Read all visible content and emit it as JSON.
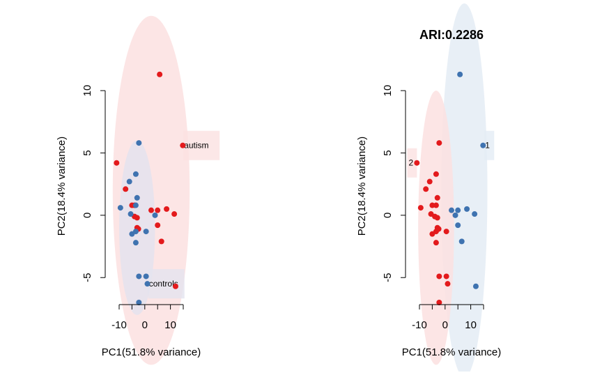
{
  "chart_data": [
    {
      "type": "scatter",
      "title": "",
      "xlabel": "PC1(51.8% variance)",
      "ylabel": "PC2(18.4% variance)",
      "xlim": [
        -10,
        15
      ],
      "ylim": [
        -7,
        10
      ],
      "xticks": [
        -10,
        0,
        10
      ],
      "yticks": [
        -5,
        0,
        5,
        10
      ],
      "grid": false,
      "colors": {
        "red": "#E31A1C",
        "blue": "#3F73B0"
      },
      "series": [
        {
          "name": "autism",
          "color": "#E31A1C",
          "ellipse": {
            "cx": 2.5,
            "cy": 2.0,
            "rx": 15.0,
            "ry": 14.0,
            "fill": "#FBE1E1"
          },
          "label_at": [
            14.5,
            5.6
          ],
          "points": [
            [
              5.8,
              11.3
            ],
            [
              14.8,
              5.6
            ],
            [
              -11.0,
              4.2
            ],
            [
              -7.5,
              2.1
            ],
            [
              -5.0,
              0.8
            ],
            [
              -4.0,
              0.8
            ],
            [
              -4.0,
              -0.1
            ],
            [
              -3.0,
              -0.2
            ],
            [
              -3.0,
              -1.0
            ],
            [
              -2.5,
              -1.1
            ],
            [
              2.5,
              0.4
            ],
            [
              5.0,
              0.4
            ],
            [
              8.5,
              0.5
            ],
            [
              11.5,
              0.1
            ],
            [
              5.0,
              -0.8
            ],
            [
              6.5,
              -2.1
            ],
            [
              12.0,
              -5.7
            ]
          ]
        },
        {
          "name": "controls",
          "color": "#3F73B0",
          "ellipse": {
            "cx": -3.0,
            "cy": -1.0,
            "rx": 7.0,
            "ry": 7.0,
            "fill": "#E4E3EF"
          },
          "label_at": [
            0.8,
            -5.5
          ],
          "points": [
            [
              -2.3,
              5.8
            ],
            [
              -3.5,
              3.3
            ],
            [
              -6.0,
              2.7
            ],
            [
              -3.0,
              1.4
            ],
            [
              -9.5,
              0.6
            ],
            [
              -3.5,
              0.8
            ],
            [
              -5.5,
              0.1
            ],
            [
              4.0,
              0.0
            ],
            [
              -5.0,
              -1.5
            ],
            [
              -3.5,
              -1.3
            ],
            [
              0.5,
              -1.3
            ],
            [
              -3.5,
              -2.2
            ],
            [
              -2.3,
              -4.9
            ],
            [
              0.5,
              -4.9
            ],
            [
              1.0,
              -5.5
            ],
            [
              -2.3,
              -7.0
            ]
          ]
        }
      ],
      "annotations": [
        "autism",
        "controls"
      ]
    },
    {
      "type": "scatter",
      "title": "ARI:0.2286",
      "xlabel": "PC1(51.8% variance)",
      "ylabel": "PC2(18.4% variance)",
      "xlim": [
        -10,
        15
      ],
      "ylim": [
        -7,
        10
      ],
      "xticks": [
        -10,
        0,
        10
      ],
      "yticks": [
        -5,
        0,
        5,
        10
      ],
      "grid": false,
      "colors": {
        "red": "#E31A1C",
        "blue": "#3F73B0"
      },
      "series": [
        {
          "name": "1",
          "color": "#3F73B0",
          "ellipse": {
            "cx": 7.5,
            "cy": 2.0,
            "rx": 9.0,
            "ry": 15.0,
            "fill": "#E4ECF5"
          },
          "label_at": [
            14.8,
            5.6
          ],
          "points": [
            [
              5.8,
              11.3
            ],
            [
              14.8,
              5.6
            ],
            [
              2.5,
              0.4
            ],
            [
              5.0,
              0.4
            ],
            [
              8.5,
              0.5
            ],
            [
              11.5,
              0.1
            ],
            [
              4.0,
              0.0
            ],
            [
              5.0,
              -0.8
            ],
            [
              6.5,
              -2.1
            ],
            [
              12.0,
              -5.7
            ]
          ]
        },
        {
          "name": "2",
          "color": "#E31A1C",
          "ellipse": {
            "cx": -3.5,
            "cy": -1.0,
            "rx": 7.0,
            "ry": 11.0,
            "fill": "#FBE1E1"
          },
          "label_at": [
            -11.5,
            4.2
          ],
          "points": [
            [
              -2.3,
              5.8
            ],
            [
              -3.5,
              3.3
            ],
            [
              -6.0,
              2.7
            ],
            [
              -11.0,
              4.2
            ],
            [
              -7.5,
              2.1
            ],
            [
              -3.0,
              1.4
            ],
            [
              -9.5,
              0.6
            ],
            [
              -3.5,
              0.8
            ],
            [
              -5.0,
              0.8
            ],
            [
              -5.5,
              0.1
            ],
            [
              -4.0,
              -0.1
            ],
            [
              -3.0,
              -0.2
            ],
            [
              -3.0,
              -1.0
            ],
            [
              -2.5,
              -1.1
            ],
            [
              -5.0,
              -1.5
            ],
            [
              -3.5,
              -1.3
            ],
            [
              0.5,
              -1.3
            ],
            [
              -3.5,
              -2.2
            ],
            [
              -2.3,
              -4.9
            ],
            [
              0.5,
              -4.9
            ],
            [
              1.0,
              -5.5
            ],
            [
              -2.3,
              -7.0
            ]
          ]
        }
      ],
      "annotations": [
        "1",
        "2"
      ]
    }
  ]
}
